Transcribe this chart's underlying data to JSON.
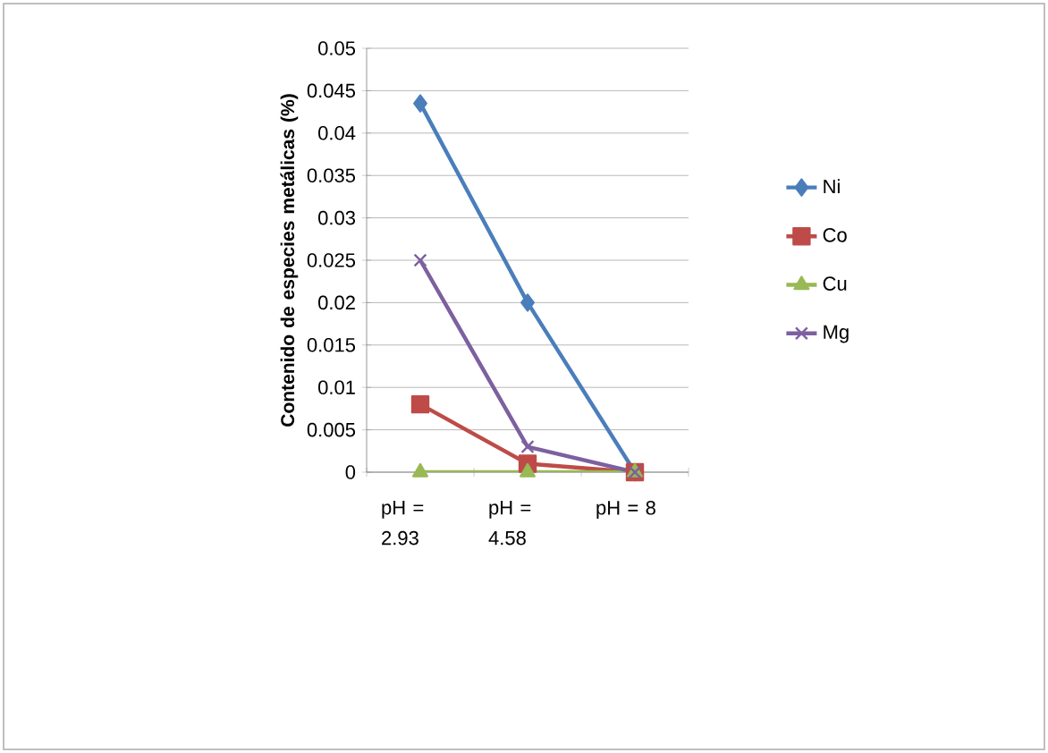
{
  "chart_data": {
    "type": "line",
    "ylabel": "Contenido de especies metálicas (%)",
    "categories": [
      "pH = 2.93",
      "pH = 4.58",
      "pH = 8"
    ],
    "ylim": [
      0,
      0.05
    ],
    "yticks": [
      0,
      0.005,
      0.01,
      0.015,
      0.02,
      0.025,
      0.03,
      0.035,
      0.04,
      0.045,
      0.05
    ],
    "grid": "y",
    "legend": "right",
    "series": [
      {
        "name": "Ni",
        "color": "#4a7ebb",
        "marker": "diamond",
        "values": [
          0.0435,
          0.02,
          0
        ]
      },
      {
        "name": "Co",
        "color": "#be4b48",
        "marker": "square",
        "values": [
          0.008,
          0.001,
          0
        ]
      },
      {
        "name": "Cu",
        "color": "#98b954",
        "marker": "triangle",
        "values": [
          0,
          0,
          0
        ]
      },
      {
        "name": "Mg",
        "color": "#7d60a0",
        "marker": "cross",
        "values": [
          0.025,
          0.003,
          0
        ]
      }
    ]
  }
}
